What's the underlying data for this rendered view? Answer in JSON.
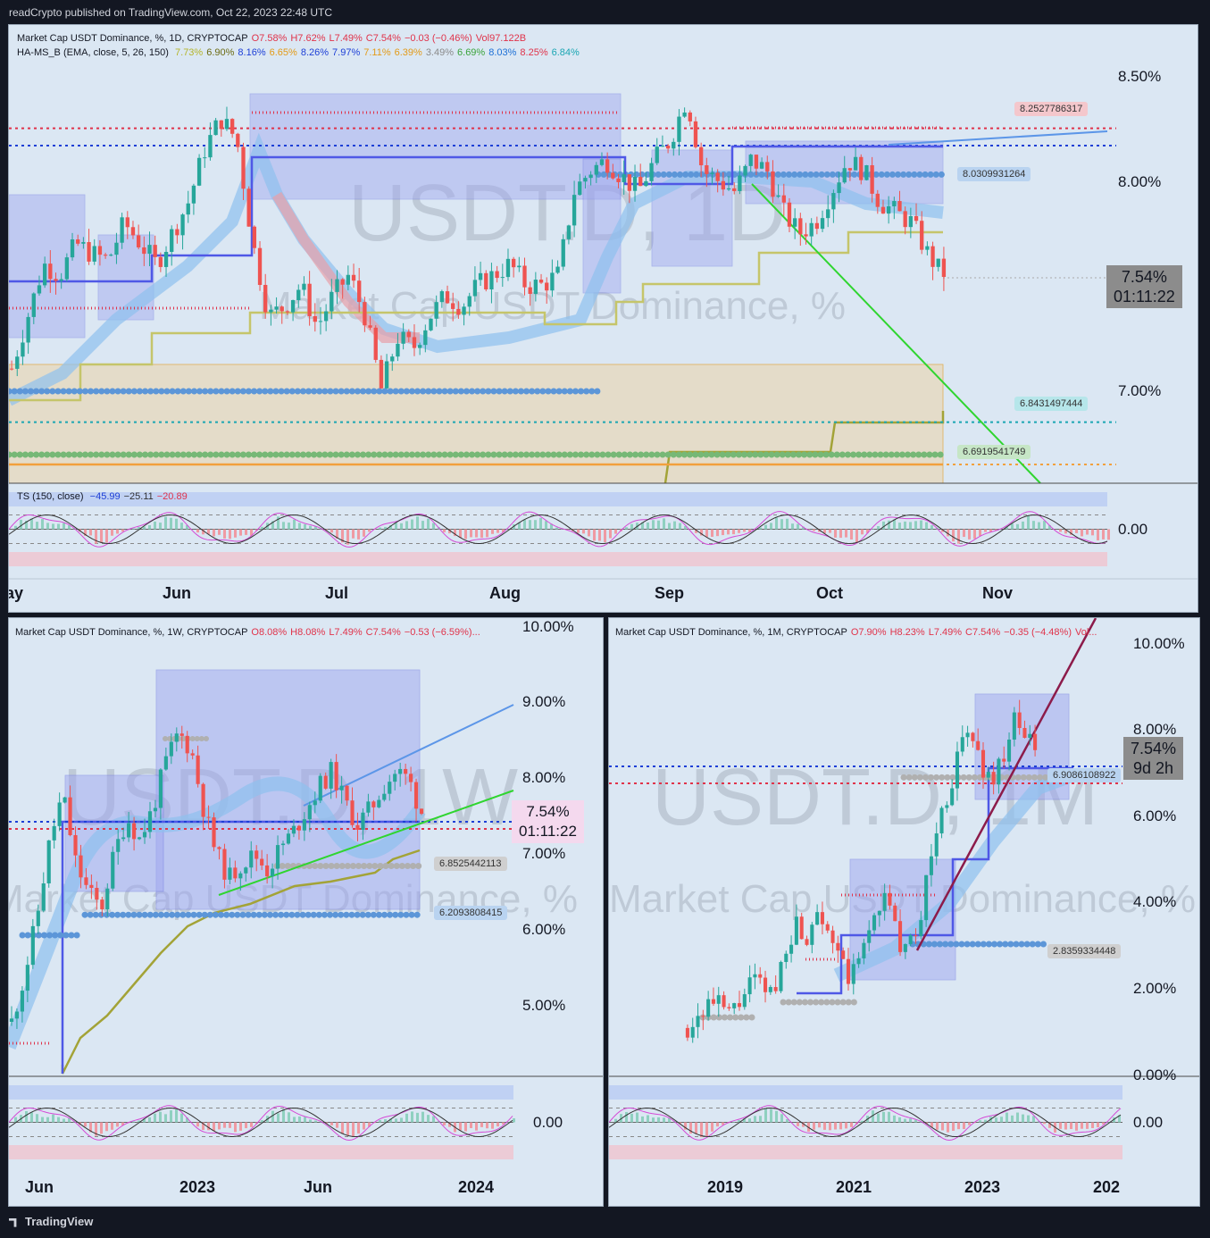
{
  "header": "readCrypto published on TradingView.com, Oct 22, 2023 22:48 UTC",
  "footer": "TradingView",
  "daily": {
    "legend_title": "Market Cap USDT Dominance, %, 1D, CRYPTOCAP",
    "ohlc": {
      "o": "O7.58%",
      "h": "H7.62%",
      "l": "L7.49%",
      "c": "C7.54%",
      "chg": "−0.03 (−0.46%)",
      "vol": "Vol97.122B"
    },
    "indicator": "HA-MS_B (EMA, close, 5, 26, 150)",
    "indicator_values": [
      {
        "v": "7.73%",
        "c": "#b5b52a"
      },
      {
        "v": "6.90%",
        "c": "#6b6b12"
      },
      {
        "v": "8.16%",
        "c": "#1d3fd6"
      },
      {
        "v": "6.65%",
        "c": "#e39a17"
      },
      {
        "v": "8.26%",
        "c": "#1d3fd6"
      },
      {
        "v": "7.97%",
        "c": "#1d3fd6"
      },
      {
        "v": "7.11%",
        "c": "#e39a17"
      },
      {
        "v": "6.39%",
        "c": "#e39a17"
      },
      {
        "v": "3.49%",
        "c": "#8a8a8a"
      },
      {
        "v": "6.69%",
        "c": "#3aa33a"
      },
      {
        "v": "8.03%",
        "c": "#1d70d6"
      },
      {
        "v": "8.25%",
        "c": "#e0334a"
      },
      {
        "v": "6.84%",
        "c": "#1ba6b3"
      }
    ],
    "ts_legend": "TS (150, close)",
    "ts_values": [
      {
        "v": "−45.99",
        "c": "#1d3fd6"
      },
      {
        "v": "−25.11",
        "c": "#333333"
      },
      {
        "v": "−20.89",
        "c": "#e0334a"
      }
    ],
    "watermark": "USDT.D, 1D",
    "watermark_sub": "Market Cap USDT Dominance, %",
    "price_label": "7.54%",
    "countdown": "01:11:22",
    "tags": [
      {
        "text": "8.2527786317",
        "bg": "#f4c7cc",
        "fg": "#333"
      },
      {
        "text": "8.0309931264",
        "bg": "#b9d3f0",
        "fg": "#333"
      },
      {
        "text": "6.8431497444",
        "bg": "#b6e6ea",
        "fg": "#333"
      },
      {
        "text": "6.6919541749",
        "bg": "#c6e6c6",
        "fg": "#333"
      }
    ]
  },
  "weekly": {
    "legend": "Market Cap USDT Dominance, %, 1W, CRYPTOCAP",
    "ohlc": {
      "o": "O8.08%",
      "h": "H8.08%",
      "l": "L7.49%",
      "c": "C7.54%",
      "chg": "−0.53 (−6.59%)..."
    },
    "watermark": "USDT.D, 1W",
    "watermark_sub": "Market Cap USDT Dominance, %",
    "price_label": "7.54%",
    "countdown": "01:11:22",
    "tags": [
      {
        "text": "6.8525442113",
        "bg": "#cfcfcf",
        "fg": "#333"
      },
      {
        "text": "6.2093808415",
        "bg": "#b9d3f0",
        "fg": "#333"
      }
    ]
  },
  "monthly": {
    "legend": "Market Cap USDT Dominance, %, 1M, CRYPTOCAP",
    "ohlc": {
      "o": "O7.90%",
      "h": "H8.23%",
      "l": "L7.49%",
      "c": "C7.54%",
      "chg": "−0.35 (−4.48%)",
      "vol": "Vol..."
    },
    "watermark": "USDT.D, 1M",
    "watermark_sub": "Market Cap USDT Dominance, %",
    "price_label": "7.54%",
    "countdown": "9d 2h",
    "tags": [
      {
        "text": "6.9086108922",
        "bg": "#b9d3f0",
        "fg": "#333"
      },
      {
        "text": "2.8359334448",
        "bg": "#cfcfcf",
        "fg": "#333"
      }
    ]
  },
  "chart_data": [
    {
      "type": "candlestick",
      "timeframe": "1D",
      "title": "Market Cap USDT Dominance, %, 1D, CRYPTOCAP",
      "y_ticks": [
        "8.50%",
        "8.00%",
        "7.00%"
      ],
      "x_ticks": [
        "May",
        "Jun",
        "Jul",
        "Aug",
        "Sep",
        "Oct",
        "Nov"
      ],
      "ylim": [
        6.55,
        8.85
      ],
      "close_path": [
        7.1,
        7.35,
        7.6,
        7.55,
        7.7,
        7.65,
        7.62,
        7.8,
        7.7,
        7.6,
        7.75,
        7.9,
        8.15,
        8.3,
        8.2,
        7.7,
        7.35,
        7.4,
        7.5,
        7.3,
        7.45,
        7.55,
        7.35,
        7.0,
        7.25,
        7.2,
        7.35,
        7.45,
        7.4,
        7.5,
        7.55,
        7.6,
        7.5,
        7.5,
        7.55,
        7.95,
        8.05,
        8.1,
        8.02,
        7.95,
        8.1,
        8.2,
        8.4,
        8.05,
        8.0,
        7.95,
        8.1,
        8.05,
        7.85,
        7.75,
        7.8,
        7.95,
        8.1,
        8.05,
        7.9,
        7.85,
        7.8,
        7.65,
        7.54
      ],
      "last": 7.54,
      "levels": [
        {
          "name": "resistance-red",
          "value": 8.2527786317
        },
        {
          "name": "support-blue",
          "value": 8.0309931264
        },
        {
          "name": "support-cyan",
          "value": 6.8431497444
        },
        {
          "name": "support-green",
          "value": 6.6919541749
        }
      ],
      "oscillator": {
        "name": "TS (150, close)",
        "zero_label": "0.00",
        "values": [
          -45.99,
          -25.11,
          -20.89
        ]
      }
    },
    {
      "type": "candlestick",
      "timeframe": "1W",
      "title": "Market Cap USDT Dominance, %, 1W, CRYPTOCAP",
      "y_ticks": [
        "10.00%",
        "9.00%",
        "8.00%",
        "7.00%",
        "6.00%",
        "5.00%"
      ],
      "x_ticks": [
        "Jun",
        "2023",
        "Jun",
        "2024"
      ],
      "ylim": [
        4.1,
        10.1
      ],
      "close_path": [
        4.8,
        5.4,
        6.2,
        7.2,
        7.8,
        6.9,
        6.5,
        6.3,
        7.0,
        7.5,
        7.2,
        7.6,
        8.2,
        8.6,
        8.4,
        7.6,
        7.0,
        6.7,
        6.9,
        7.0,
        6.8,
        7.1,
        7.3,
        7.6,
        7.9,
        8.1,
        7.7,
        7.4,
        7.6,
        7.9,
        8.1,
        8.0,
        7.54
      ],
      "last": 7.54,
      "levels": [
        {
          "name": "support-gray",
          "value": 6.8525442113
        },
        {
          "name": "support-blue",
          "value": 6.2093808415
        }
      ],
      "oscillator": {
        "zero_label": "0.00"
      }
    },
    {
      "type": "candlestick",
      "timeframe": "1M",
      "title": "Market Cap USDT Dominance, %, 1M, CRYPTOCAP",
      "y_ticks": [
        "10.00%",
        "8.00%",
        "6.00%",
        "4.00%",
        "2.00%",
        "0.00%"
      ],
      "x_ticks": [
        "2019",
        "2021",
        "2023",
        "202"
      ],
      "ylim": [
        0,
        10.3
      ],
      "close_path": [
        1.1,
        1.4,
        1.7,
        1.6,
        1.4,
        1.8,
        2.2,
        2.0,
        1.9,
        3.0,
        3.5,
        3.2,
        4.0,
        3.4,
        2.6,
        2.2,
        2.8,
        3.6,
        4.2,
        3.5,
        2.8,
        3.2,
        4.5,
        5.8,
        6.5,
        7.5,
        8.0,
        7.2,
        6.8,
        7.4,
        8.2,
        7.9,
        7.54
      ],
      "last": 7.54,
      "levels": [
        {
          "name": "support-blue",
          "value": 6.9086108922
        },
        {
          "name": "support-gray",
          "value": 2.8359334448
        }
      ],
      "oscillator": {
        "zero_label": "0.00"
      }
    }
  ]
}
